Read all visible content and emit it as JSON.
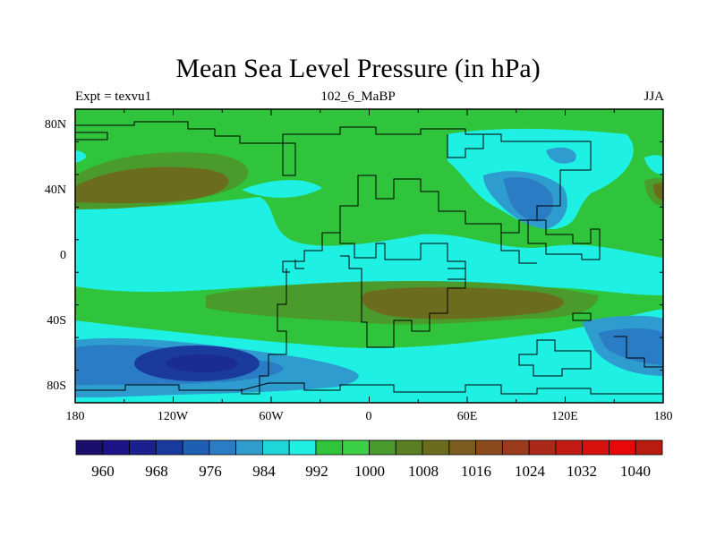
{
  "title": "Mean Sea Level Pressure (in hPa)",
  "left_subtitle": "Expt = texvu1",
  "center_subtitle": "102_6_MaBP",
  "right_subtitle": "JJA",
  "lat_labels": [
    "80N",
    "40N",
    "0",
    "40S",
    "80S"
  ],
  "lon_labels": [
    "180",
    "120W",
    "60W",
    "0",
    "60E",
    "120E",
    "180"
  ],
  "colorbar": {
    "labels": [
      "960",
      "968",
      "976",
      "984",
      "992",
      "1000",
      "1008",
      "1016",
      "1024",
      "1032",
      "1040"
    ],
    "colors": [
      "#1b0f6e",
      "#1c1387",
      "#1a2090",
      "#1a3a9e",
      "#1e5fb4",
      "#2a7cc4",
      "#2f9ccf",
      "#1ed6d8",
      "#1ef1e4",
      "#2fc43b",
      "#3ccf48",
      "#4a9a2c",
      "#5a7e22",
      "#6b6c1e",
      "#7b5b1e",
      "#8a4a1e",
      "#9b3a1c",
      "#aa2a1a",
      "#c41a14",
      "#d8100e",
      "#e8080a",
      "#b81c10"
    ]
  },
  "chart_data": {
    "type": "contour-map",
    "variable": "Mean Sea Level Pressure",
    "units": "hPa",
    "season": "JJA",
    "experiment": "texvu1",
    "period": "102_6_MaBP",
    "levels": [
      960,
      968,
      976,
      984,
      992,
      1000,
      1008,
      1016,
      1024,
      1032,
      1040
    ],
    "lat_range": [
      -90,
      90
    ],
    "lon_range": [
      -180,
      180
    ]
  }
}
